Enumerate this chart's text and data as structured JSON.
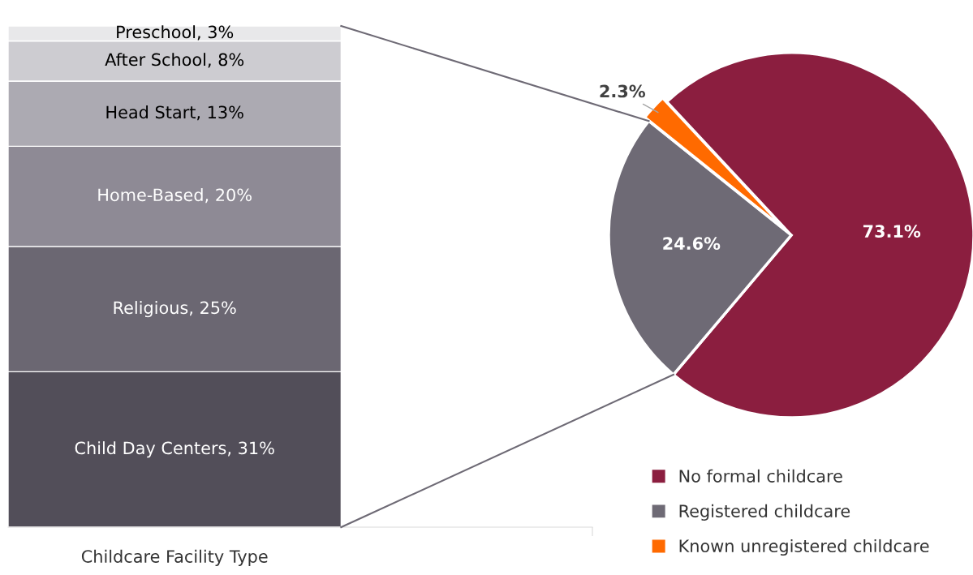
{
  "chart_data": [
    {
      "type": "bar",
      "stacked": true,
      "categories": [
        null
      ],
      "xlabel": "Childcare Facility Type",
      "series": [
        {
          "color": "#524e59",
          "values": [
            31
          ],
          "value_labels": [
            "Child Day Centers, 31%"
          ]
        },
        {
          "color": "#6b6772",
          "values": [
            25
          ],
          "value_labels": [
            "Religious, 25%"
          ]
        },
        {
          "color": "#8e8a95",
          "values": [
            20
          ],
          "value_labels": [
            "Home-Based, 20%"
          ]
        },
        {
          "color": "#acaab2",
          "values": [
            13
          ],
          "value_labels": [
            "Head Start, 13%"
          ]
        },
        {
          "color": "#cdccd1",
          "values": [
            8
          ],
          "value_labels": [
            "After School, 8%"
          ]
        },
        {
          "color": "#e8e8ea",
          "values": [
            3
          ],
          "value_labels": [
            "Preschool, 3%"
          ]
        }
      ],
      "legend": false,
      "grid": false
    },
    {
      "type": "pie",
      "categories": [
        "No formal childcare",
        "Registered childcare",
        "Known unregistered childcare"
      ],
      "values": [
        73.1,
        24.6,
        2.3
      ],
      "colors": [
        "#8b1e3f",
        "#6e6a75",
        "#ff6a00"
      ],
      "value_labels": [
        "73.1%",
        "24.6%",
        "2.3%"
      ],
      "legend": "bottom"
    }
  ]
}
